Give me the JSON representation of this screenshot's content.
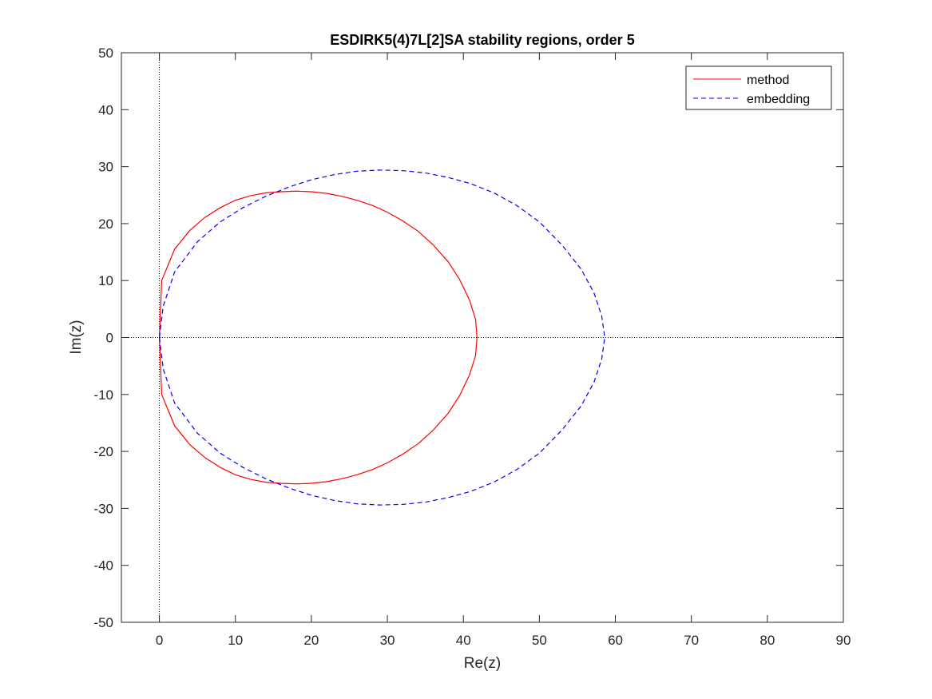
{
  "chart_data": {
    "type": "line",
    "title": "ESDIRK5(4)7L[2]SA stability regions, order 5",
    "xlabel": "Re(z)",
    "ylabel": "Im(z)",
    "xlim": [
      -5,
      90
    ],
    "ylim": [
      -50,
      50
    ],
    "xticks": [
      0,
      10,
      20,
      30,
      40,
      50,
      60,
      70,
      80,
      90
    ],
    "yticks": [
      -50,
      -40,
      -30,
      -20,
      -10,
      0,
      10,
      20,
      30,
      40,
      50
    ],
    "grid": false,
    "legend_position": "top-right",
    "reference_lines": [
      {
        "orientation": "vertical",
        "value": 0,
        "style": "dotted"
      },
      {
        "orientation": "horizontal",
        "value": 0,
        "style": "dotted"
      }
    ],
    "series": [
      {
        "name": "method",
        "color": "#ff0000",
        "style": "solid",
        "x": [
          0,
          0.3,
          2,
          4,
          6,
          8,
          10,
          12,
          14,
          16,
          18,
          20,
          22,
          24,
          26,
          28,
          30,
          32,
          34,
          36,
          38,
          39.5,
          40.8,
          41.6,
          41.8,
          41.6,
          40.8,
          39.5,
          38,
          36,
          34,
          32,
          30,
          28,
          26,
          24,
          22,
          20,
          18,
          16,
          14,
          12,
          10,
          8,
          6,
          4,
          2,
          0.3,
          0
        ],
        "y": [
          0,
          10,
          15.5,
          18.8,
          21.1,
          22.8,
          24.1,
          24.9,
          25.4,
          25.6,
          25.7,
          25.6,
          25.3,
          24.8,
          24.1,
          23.2,
          22.0,
          20.5,
          18.7,
          16.3,
          13.3,
          10.2,
          6.6,
          3.2,
          0,
          -3.2,
          -6.6,
          -10.2,
          -13.3,
          -16.3,
          -18.7,
          -20.5,
          -22.0,
          -23.2,
          -24.1,
          -24.8,
          -25.3,
          -25.6,
          -25.7,
          -25.6,
          -25.4,
          -24.9,
          -24.1,
          -22.8,
          -21.1,
          -18.8,
          -15.5,
          -10,
          0
        ]
      },
      {
        "name": "embedding",
        "color": "#0000ff",
        "style": "dashed",
        "x": [
          0,
          0.5,
          2,
          5,
          8,
          11,
          14,
          17,
          20,
          23,
          26,
          29,
          32,
          35,
          38,
          41,
          44,
          47,
          50,
          53,
          55.5,
          57.2,
          58.2,
          58.6,
          58.2,
          57.2,
          55.5,
          53,
          50,
          47,
          44,
          41,
          38,
          35,
          32,
          29,
          26,
          23,
          20,
          17,
          14,
          11,
          8,
          5,
          2,
          0.5,
          0
        ],
        "y": [
          0,
          5.5,
          11.5,
          16.8,
          20.3,
          22.8,
          24.8,
          26.4,
          27.7,
          28.6,
          29.2,
          29.4,
          29.3,
          28.9,
          28.1,
          27.0,
          25.4,
          23.2,
          20.3,
          16.2,
          12.0,
          7.8,
          3.8,
          0,
          -3.8,
          -7.8,
          -12.0,
          -16.2,
          -20.3,
          -23.2,
          -25.4,
          -27.0,
          -28.1,
          -28.9,
          -29.3,
          -29.4,
          -29.2,
          -28.6,
          -27.7,
          -26.4,
          -24.8,
          -22.8,
          -20.3,
          -16.8,
          -11.5,
          -5.5,
          0
        ]
      }
    ]
  }
}
